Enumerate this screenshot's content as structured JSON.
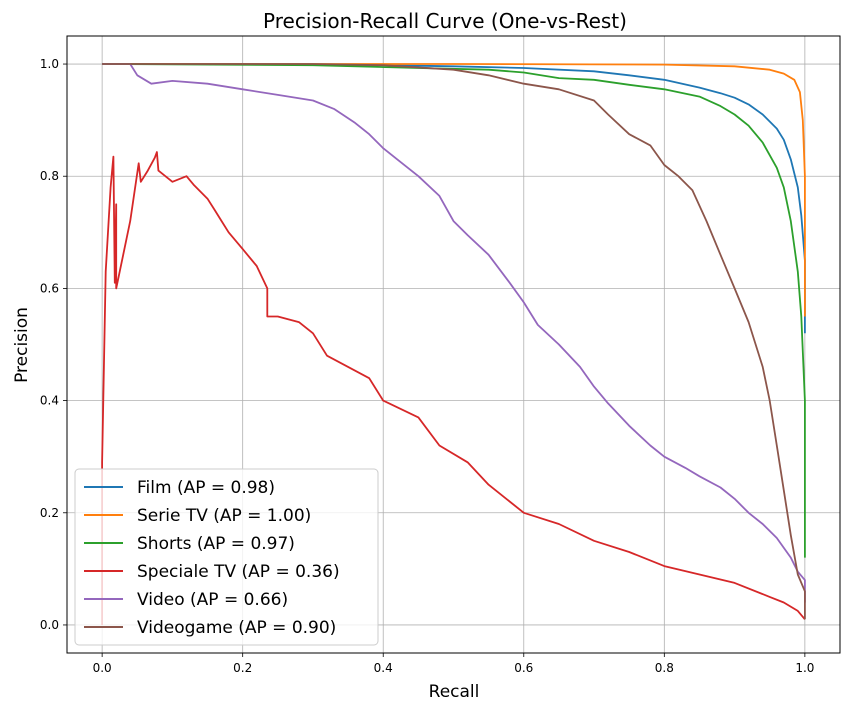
{
  "chart_data": {
    "type": "line",
    "title": "Precision-Recall Curve (One-vs-Rest)",
    "xlabel": "Recall",
    "ylabel": "Precision",
    "xlim": [
      -0.05,
      1.05
    ],
    "ylim": [
      -0.05,
      1.05
    ],
    "xticks": [
      "0.0",
      "0.2",
      "0.4",
      "0.6",
      "0.8",
      "1.0"
    ],
    "yticks": [
      "0.0",
      "0.2",
      "0.4",
      "0.6",
      "0.8",
      "1.0"
    ],
    "grid": true,
    "legend_position": "lower-left",
    "series": [
      {
        "name": "Film (AP = 0.98)",
        "color": "#1f77b4",
        "points": [
          [
            0,
            1.0
          ],
          [
            0.2,
            1.0
          ],
          [
            0.4,
            0.998
          ],
          [
            0.5,
            0.996
          ],
          [
            0.6,
            0.993
          ],
          [
            0.7,
            0.987
          ],
          [
            0.75,
            0.98
          ],
          [
            0.8,
            0.972
          ],
          [
            0.85,
            0.958
          ],
          [
            0.88,
            0.948
          ],
          [
            0.9,
            0.94
          ],
          [
            0.92,
            0.928
          ],
          [
            0.94,
            0.91
          ],
          [
            0.96,
            0.885
          ],
          [
            0.97,
            0.865
          ],
          [
            0.98,
            0.83
          ],
          [
            0.99,
            0.78
          ],
          [
            0.995,
            0.73
          ],
          [
            1.0,
            0.65
          ],
          [
            1.0,
            0.52
          ]
        ]
      },
      {
        "name": "Serie TV (AP = 1.00)",
        "color": "#ff7f0e",
        "points": [
          [
            0,
            1.0
          ],
          [
            0.5,
            1.0
          ],
          [
            0.8,
            0.999
          ],
          [
            0.9,
            0.996
          ],
          [
            0.95,
            0.99
          ],
          [
            0.97,
            0.983
          ],
          [
            0.985,
            0.972
          ],
          [
            0.993,
            0.95
          ],
          [
            0.997,
            0.9
          ],
          [
            1.0,
            0.8
          ],
          [
            1.0,
            0.55
          ]
        ]
      },
      {
        "name": "Shorts (AP = 0.97)",
        "color": "#2ca02c",
        "points": [
          [
            0,
            1.0
          ],
          [
            0.3,
            0.998
          ],
          [
            0.45,
            0.993
          ],
          [
            0.55,
            0.99
          ],
          [
            0.6,
            0.985
          ],
          [
            0.65,
            0.975
          ],
          [
            0.7,
            0.972
          ],
          [
            0.75,
            0.963
          ],
          [
            0.8,
            0.955
          ],
          [
            0.85,
            0.942
          ],
          [
            0.88,
            0.925
          ],
          [
            0.9,
            0.91
          ],
          [
            0.92,
            0.89
          ],
          [
            0.94,
            0.86
          ],
          [
            0.96,
            0.815
          ],
          [
            0.97,
            0.78
          ],
          [
            0.98,
            0.72
          ],
          [
            0.99,
            0.63
          ],
          [
            0.995,
            0.55
          ],
          [
            1.0,
            0.4
          ],
          [
            1.0,
            0.12
          ]
        ]
      },
      {
        "name": "Speciale TV (AP = 0.36)",
        "color": "#d62728",
        "points": [
          [
            0,
            0.0
          ],
          [
            0,
            0.29
          ],
          [
            0.005,
            0.63
          ],
          [
            0.012,
            0.78
          ],
          [
            0.016,
            0.835
          ],
          [
            0.018,
            0.61
          ],
          [
            0.02,
            0.75
          ],
          [
            0.02,
            0.6
          ],
          [
            0.03,
            0.66
          ],
          [
            0.04,
            0.72
          ],
          [
            0.052,
            0.823
          ],
          [
            0.055,
            0.79
          ],
          [
            0.065,
            0.81
          ],
          [
            0.075,
            0.833
          ],
          [
            0.078,
            0.843
          ],
          [
            0.08,
            0.81
          ],
          [
            0.09,
            0.8
          ],
          [
            0.1,
            0.79
          ],
          [
            0.12,
            0.8
          ],
          [
            0.13,
            0.785
          ],
          [
            0.15,
            0.76
          ],
          [
            0.16,
            0.74
          ],
          [
            0.17,
            0.72
          ],
          [
            0.18,
            0.7
          ],
          [
            0.2,
            0.67
          ],
          [
            0.22,
            0.64
          ],
          [
            0.235,
            0.6
          ],
          [
            0.235,
            0.55
          ],
          [
            0.25,
            0.55
          ],
          [
            0.28,
            0.54
          ],
          [
            0.3,
            0.52
          ],
          [
            0.32,
            0.48
          ],
          [
            0.35,
            0.46
          ],
          [
            0.38,
            0.44
          ],
          [
            0.4,
            0.4
          ],
          [
            0.45,
            0.37
          ],
          [
            0.48,
            0.32
          ],
          [
            0.52,
            0.29
          ],
          [
            0.55,
            0.25
          ],
          [
            0.6,
            0.2
          ],
          [
            0.65,
            0.18
          ],
          [
            0.7,
            0.15
          ],
          [
            0.75,
            0.13
          ],
          [
            0.8,
            0.105
          ],
          [
            0.85,
            0.09
          ],
          [
            0.9,
            0.075
          ],
          [
            0.95,
            0.05
          ],
          [
            0.97,
            0.04
          ],
          [
            0.99,
            0.025
          ],
          [
            1.0,
            0.01
          ]
        ]
      },
      {
        "name": "Video (AP = 0.66)",
        "color": "#9467bd",
        "points": [
          [
            0,
            1.0
          ],
          [
            0.04,
            1.0
          ],
          [
            0.05,
            0.98
          ],
          [
            0.07,
            0.965
          ],
          [
            0.1,
            0.97
          ],
          [
            0.15,
            0.965
          ],
          [
            0.2,
            0.955
          ],
          [
            0.25,
            0.945
          ],
          [
            0.3,
            0.935
          ],
          [
            0.33,
            0.92
          ],
          [
            0.36,
            0.895
          ],
          [
            0.38,
            0.875
          ],
          [
            0.4,
            0.85
          ],
          [
            0.42,
            0.83
          ],
          [
            0.45,
            0.8
          ],
          [
            0.48,
            0.765
          ],
          [
            0.5,
            0.72
          ],
          [
            0.52,
            0.695
          ],
          [
            0.55,
            0.66
          ],
          [
            0.58,
            0.61
          ],
          [
            0.6,
            0.575
          ],
          [
            0.62,
            0.535
          ],
          [
            0.65,
            0.5
          ],
          [
            0.68,
            0.46
          ],
          [
            0.7,
            0.425
          ],
          [
            0.72,
            0.395
          ],
          [
            0.75,
            0.355
          ],
          [
            0.78,
            0.32
          ],
          [
            0.8,
            0.3
          ],
          [
            0.83,
            0.28
          ],
          [
            0.85,
            0.265
          ],
          [
            0.88,
            0.245
          ],
          [
            0.9,
            0.225
          ],
          [
            0.92,
            0.2
          ],
          [
            0.94,
            0.18
          ],
          [
            0.96,
            0.155
          ],
          [
            0.98,
            0.12
          ],
          [
            0.99,
            0.095
          ],
          [
            1.0,
            0.08
          ],
          [
            1.0,
            0.04
          ]
        ]
      },
      {
        "name": "Videogame (AP = 0.90)",
        "color": "#8c564b",
        "points": [
          [
            0,
            1.0
          ],
          [
            0.3,
            1.0
          ],
          [
            0.4,
            0.998
          ],
          [
            0.5,
            0.99
          ],
          [
            0.55,
            0.98
          ],
          [
            0.6,
            0.965
          ],
          [
            0.65,
            0.955
          ],
          [
            0.7,
            0.935
          ],
          [
            0.72,
            0.91
          ],
          [
            0.75,
            0.875
          ],
          [
            0.78,
            0.855
          ],
          [
            0.8,
            0.82
          ],
          [
            0.82,
            0.8
          ],
          [
            0.84,
            0.775
          ],
          [
            0.86,
            0.72
          ],
          [
            0.88,
            0.66
          ],
          [
            0.9,
            0.6
          ],
          [
            0.92,
            0.54
          ],
          [
            0.94,
            0.46
          ],
          [
            0.95,
            0.4
          ],
          [
            0.96,
            0.32
          ],
          [
            0.97,
            0.24
          ],
          [
            0.98,
            0.16
          ],
          [
            0.99,
            0.09
          ],
          [
            1.0,
            0.06
          ],
          [
            1.0,
            0.01
          ]
        ]
      }
    ]
  }
}
